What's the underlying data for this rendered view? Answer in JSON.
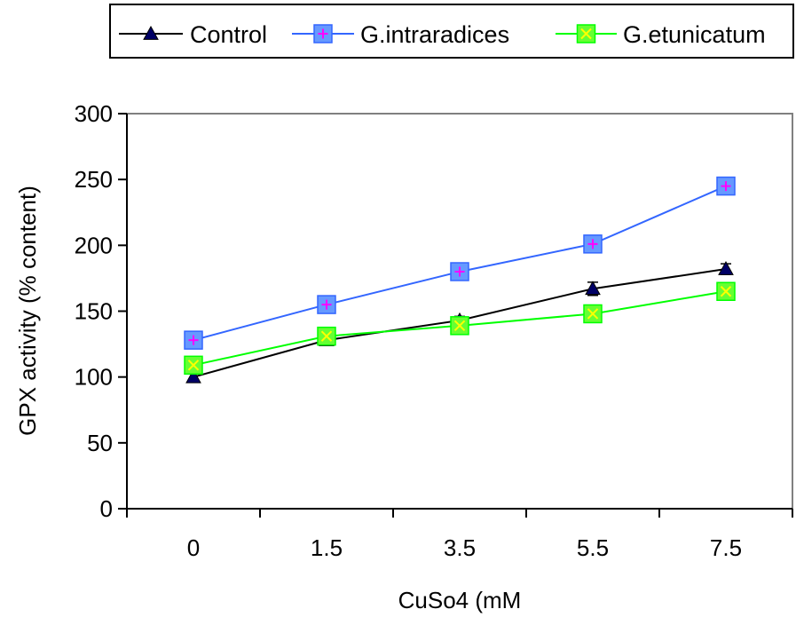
{
  "chart_data": {
    "type": "line",
    "title": "",
    "xlabel": "CuSo4 (mM",
    "ylabel": "GPX activity (% content)",
    "categories": [
      "0",
      "1.5",
      "3.5",
      "5.5",
      "7.5"
    ],
    "ylim": [
      0,
      300
    ],
    "yticks": [
      "0",
      "50",
      "100",
      "150",
      "200",
      "250",
      "300"
    ],
    "grid": false,
    "legend_position": "top",
    "series": [
      {
        "name": "Control",
        "values": [
          100,
          128,
          143,
          167,
          182
        ],
        "errors": [
          3,
          3,
          3,
          5,
          4
        ],
        "color": "#000000",
        "marker": "triangle",
        "marker_color": "#000066"
      },
      {
        "name": "G.intraradices",
        "values": [
          128,
          155,
          180,
          201,
          245
        ],
        "errors": [
          2,
          2,
          3,
          3,
          3
        ],
        "color": "#3366ff",
        "marker": "square-plus",
        "marker_color": "#6699ff",
        "marker_accent": "#ff00ff"
      },
      {
        "name": "G.etunicatum",
        "values": [
          109,
          131,
          139,
          148,
          165
        ],
        "errors": [
          2,
          2,
          2,
          2,
          3
        ],
        "color": "#00ff00",
        "marker": "square-x",
        "marker_color": "#66ff33",
        "marker_accent": "#ffff00"
      }
    ]
  }
}
